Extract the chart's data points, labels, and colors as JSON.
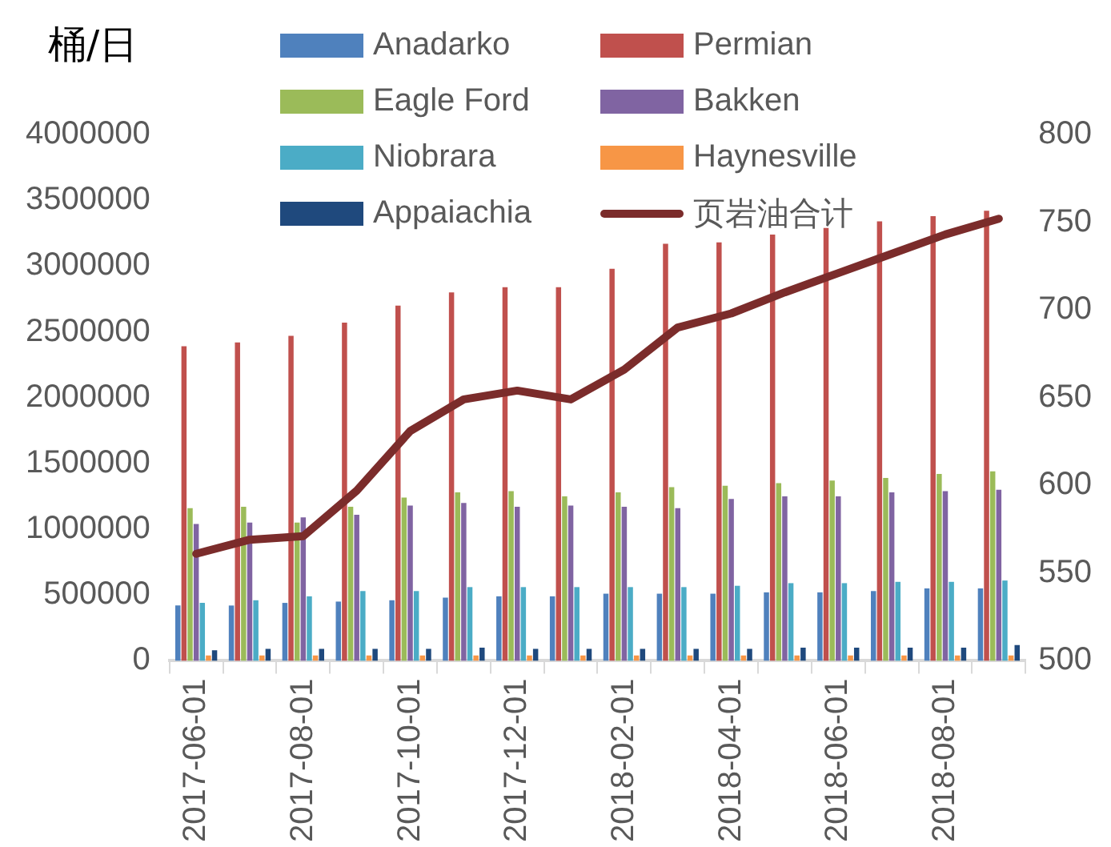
{
  "chart_data": {
    "type": "bar",
    "ylabel": "桶/日",
    "categories": [
      "2017-06-01",
      null,
      "2017-08-01",
      null,
      "2017-10-01",
      null,
      "2017-12-01",
      null,
      "2018-02-01",
      null,
      "2018-04-01",
      null,
      "2018-06-01",
      null,
      "2018-08-01",
      null
    ],
    "series": [
      {
        "name": "Anadarko",
        "color": "#4f81bd",
        "values": [
          420000,
          420000,
          440000,
          450000,
          460000,
          480000,
          490000,
          490000,
          510000,
          510000,
          510000,
          520000,
          520000,
          530000,
          550000,
          550000
        ]
      },
      {
        "name": "Permian",
        "color": "#c0504d",
        "values": [
          2390000,
          2420000,
          2470000,
          2570000,
          2700000,
          2800000,
          2840000,
          2840000,
          2980000,
          3170000,
          3180000,
          3240000,
          3290000,
          3340000,
          3380000,
          3420000
        ]
      },
      {
        "name": "Eagle Ford",
        "color": "#9bbb59",
        "values": [
          1160000,
          1170000,
          1050000,
          1170000,
          1240000,
          1280000,
          1290000,
          1250000,
          1280000,
          1320000,
          1330000,
          1350000,
          1370000,
          1390000,
          1420000,
          1440000
        ]
      },
      {
        "name": "Bakken",
        "color": "#8064a2",
        "values": [
          1040000,
          1050000,
          1090000,
          1110000,
          1180000,
          1200000,
          1170000,
          1180000,
          1170000,
          1160000,
          1230000,
          1250000,
          1250000,
          1280000,
          1290000,
          1300000
        ]
      },
      {
        "name": "Niobrara",
        "color": "#4bacc6",
        "values": [
          440000,
          460000,
          490000,
          530000,
          530000,
          560000,
          560000,
          560000,
          560000,
          560000,
          570000,
          590000,
          590000,
          600000,
          600000,
          610000
        ]
      },
      {
        "name": "Haynesville",
        "color": "#f79646",
        "values": [
          40000,
          40000,
          40000,
          40000,
          40000,
          40000,
          40000,
          40000,
          40000,
          40000,
          40000,
          40000,
          40000,
          40000,
          40000,
          40000
        ]
      },
      {
        "name": "Appaiachia",
        "color": "#1f497d",
        "values": [
          80000,
          90000,
          90000,
          90000,
          90000,
          100000,
          90000,
          90000,
          90000,
          90000,
          90000,
          100000,
          100000,
          100000,
          100000,
          120000
        ]
      },
      {
        "name": "页岩油合计",
        "type": "line",
        "axis": "y2",
        "color": "#7b2c2b",
        "values": [
          561,
          569,
          571,
          597,
          631,
          649,
          654,
          649,
          666,
          690,
          698,
          710,
          721,
          732,
          743,
          752
        ]
      }
    ],
    "ylim": [
      0,
      4000000
    ],
    "yticks": [
      0,
      500000,
      1000000,
      1500000,
      2000000,
      2500000,
      3000000,
      3500000,
      4000000
    ],
    "y2lim": [
      500,
      800
    ],
    "y2ticks": [
      500,
      550,
      600,
      650,
      700,
      750,
      800
    ],
    "grid": false,
    "legend": "top",
    "marker": "none"
  }
}
